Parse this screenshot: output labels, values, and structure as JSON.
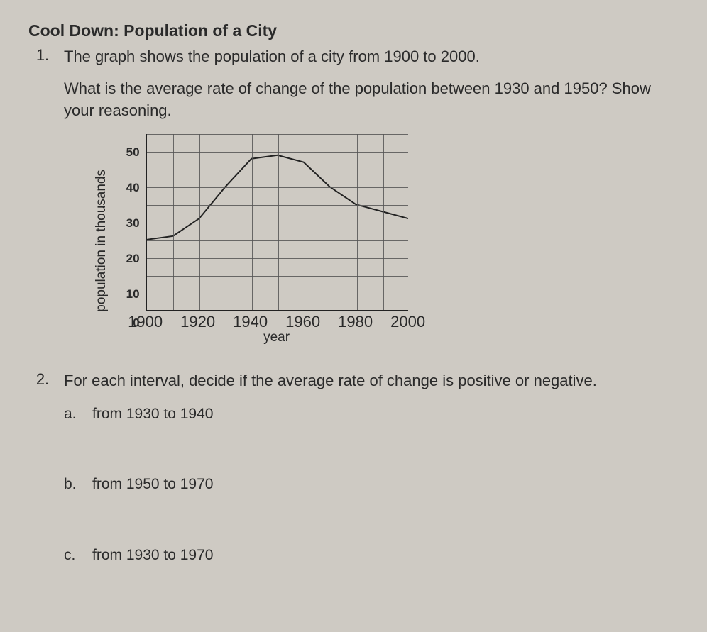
{
  "title": "Cool Down: Population of a City",
  "q1": {
    "number": "1.",
    "line1": "The graph shows the population of a city from 1900 to 2000.",
    "line2": "What is the average rate of change of the population between 1930 and 1950? Show your reasoning."
  },
  "chart": {
    "type": "line",
    "xlabel": "year",
    "ylabel": "population in thousands",
    "xlim": [
      1900,
      2000
    ],
    "ylim": [
      0,
      50
    ],
    "xticks": [
      1900,
      1920,
      1940,
      1960,
      1980,
      2000
    ],
    "yticks": [
      0,
      10,
      20,
      30,
      40,
      50
    ],
    "grid_color": "#555555",
    "line_color": "#222222",
    "line_width": 2,
    "background_color": "#cecac3",
    "xtick_step": 10,
    "ytick_step": 5,
    "points": [
      {
        "x": 1900,
        "y": 20
      },
      {
        "x": 1910,
        "y": 21
      },
      {
        "x": 1920,
        "y": 26
      },
      {
        "x": 1930,
        "y": 35
      },
      {
        "x": 1940,
        "y": 43
      },
      {
        "x": 1950,
        "y": 44
      },
      {
        "x": 1960,
        "y": 42
      },
      {
        "x": 1970,
        "y": 35
      },
      {
        "x": 1980,
        "y": 30
      },
      {
        "x": 1990,
        "y": 28
      },
      {
        "x": 2000,
        "y": 26
      }
    ]
  },
  "q2": {
    "number": "2.",
    "text": "For each interval, decide if the average rate of change is positive or negative.",
    "parts": {
      "a": {
        "letter": "a.",
        "text": "from 1930 to 1940"
      },
      "b": {
        "letter": "b.",
        "text": "from 1950 to 1970"
      },
      "c": {
        "letter": "c.",
        "text": "from 1930 to 1970"
      }
    }
  }
}
